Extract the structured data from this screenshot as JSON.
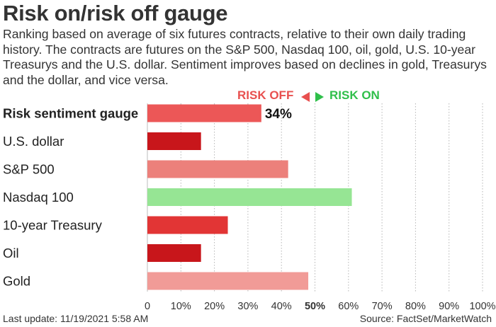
{
  "title": "Risk on/risk off gauge",
  "subtitle": "Ranking based on average of six futures contracts, relative to their own daily trading history. The contracts are futures on the S&P 500, Nasdaq 100, oil, gold, U.S. 10-year Treasurys and the U.S. dollar. Sentiment improves based on declines in gold, Treasurys and the dollar, and vice versa.",
  "legend": {
    "risk_off": "RISK OFF",
    "risk_on": "RISK ON",
    "risk_off_color": "#e8504f",
    "risk_on_color": "#2fbf4a"
  },
  "footer": {
    "last_update": "Last update: 11/19/2021 5:58 AM",
    "source": "Source: FactSet/MarketWatch"
  },
  "chart_data": {
    "type": "bar",
    "orientation": "horizontal",
    "categories": [
      "Risk sentiment gauge",
      "U.S. dollar",
      "S&P 500",
      "Nasdaq 100",
      "10-year Treasury",
      "Oil",
      "Gold"
    ],
    "values": [
      34,
      16,
      42,
      61,
      24,
      16,
      48
    ],
    "colors": [
      "#ec5757",
      "#c8161b",
      "#ec807b",
      "#96e594",
      "#e23535",
      "#c8161b",
      "#f19b97"
    ],
    "data_labels": [
      "34%",
      "",
      "",
      "",
      "",
      "",
      ""
    ],
    "bold_categories": [
      "Risk sentiment gauge"
    ],
    "xlim": [
      0,
      100
    ],
    "x_ticks": [
      "0",
      "10%",
      "20%",
      "30%",
      "40%",
      "50%",
      "60%",
      "70%",
      "80%",
      "90%",
      "100%"
    ],
    "bold_tick": "50%",
    "grid": "vertical dotted"
  }
}
